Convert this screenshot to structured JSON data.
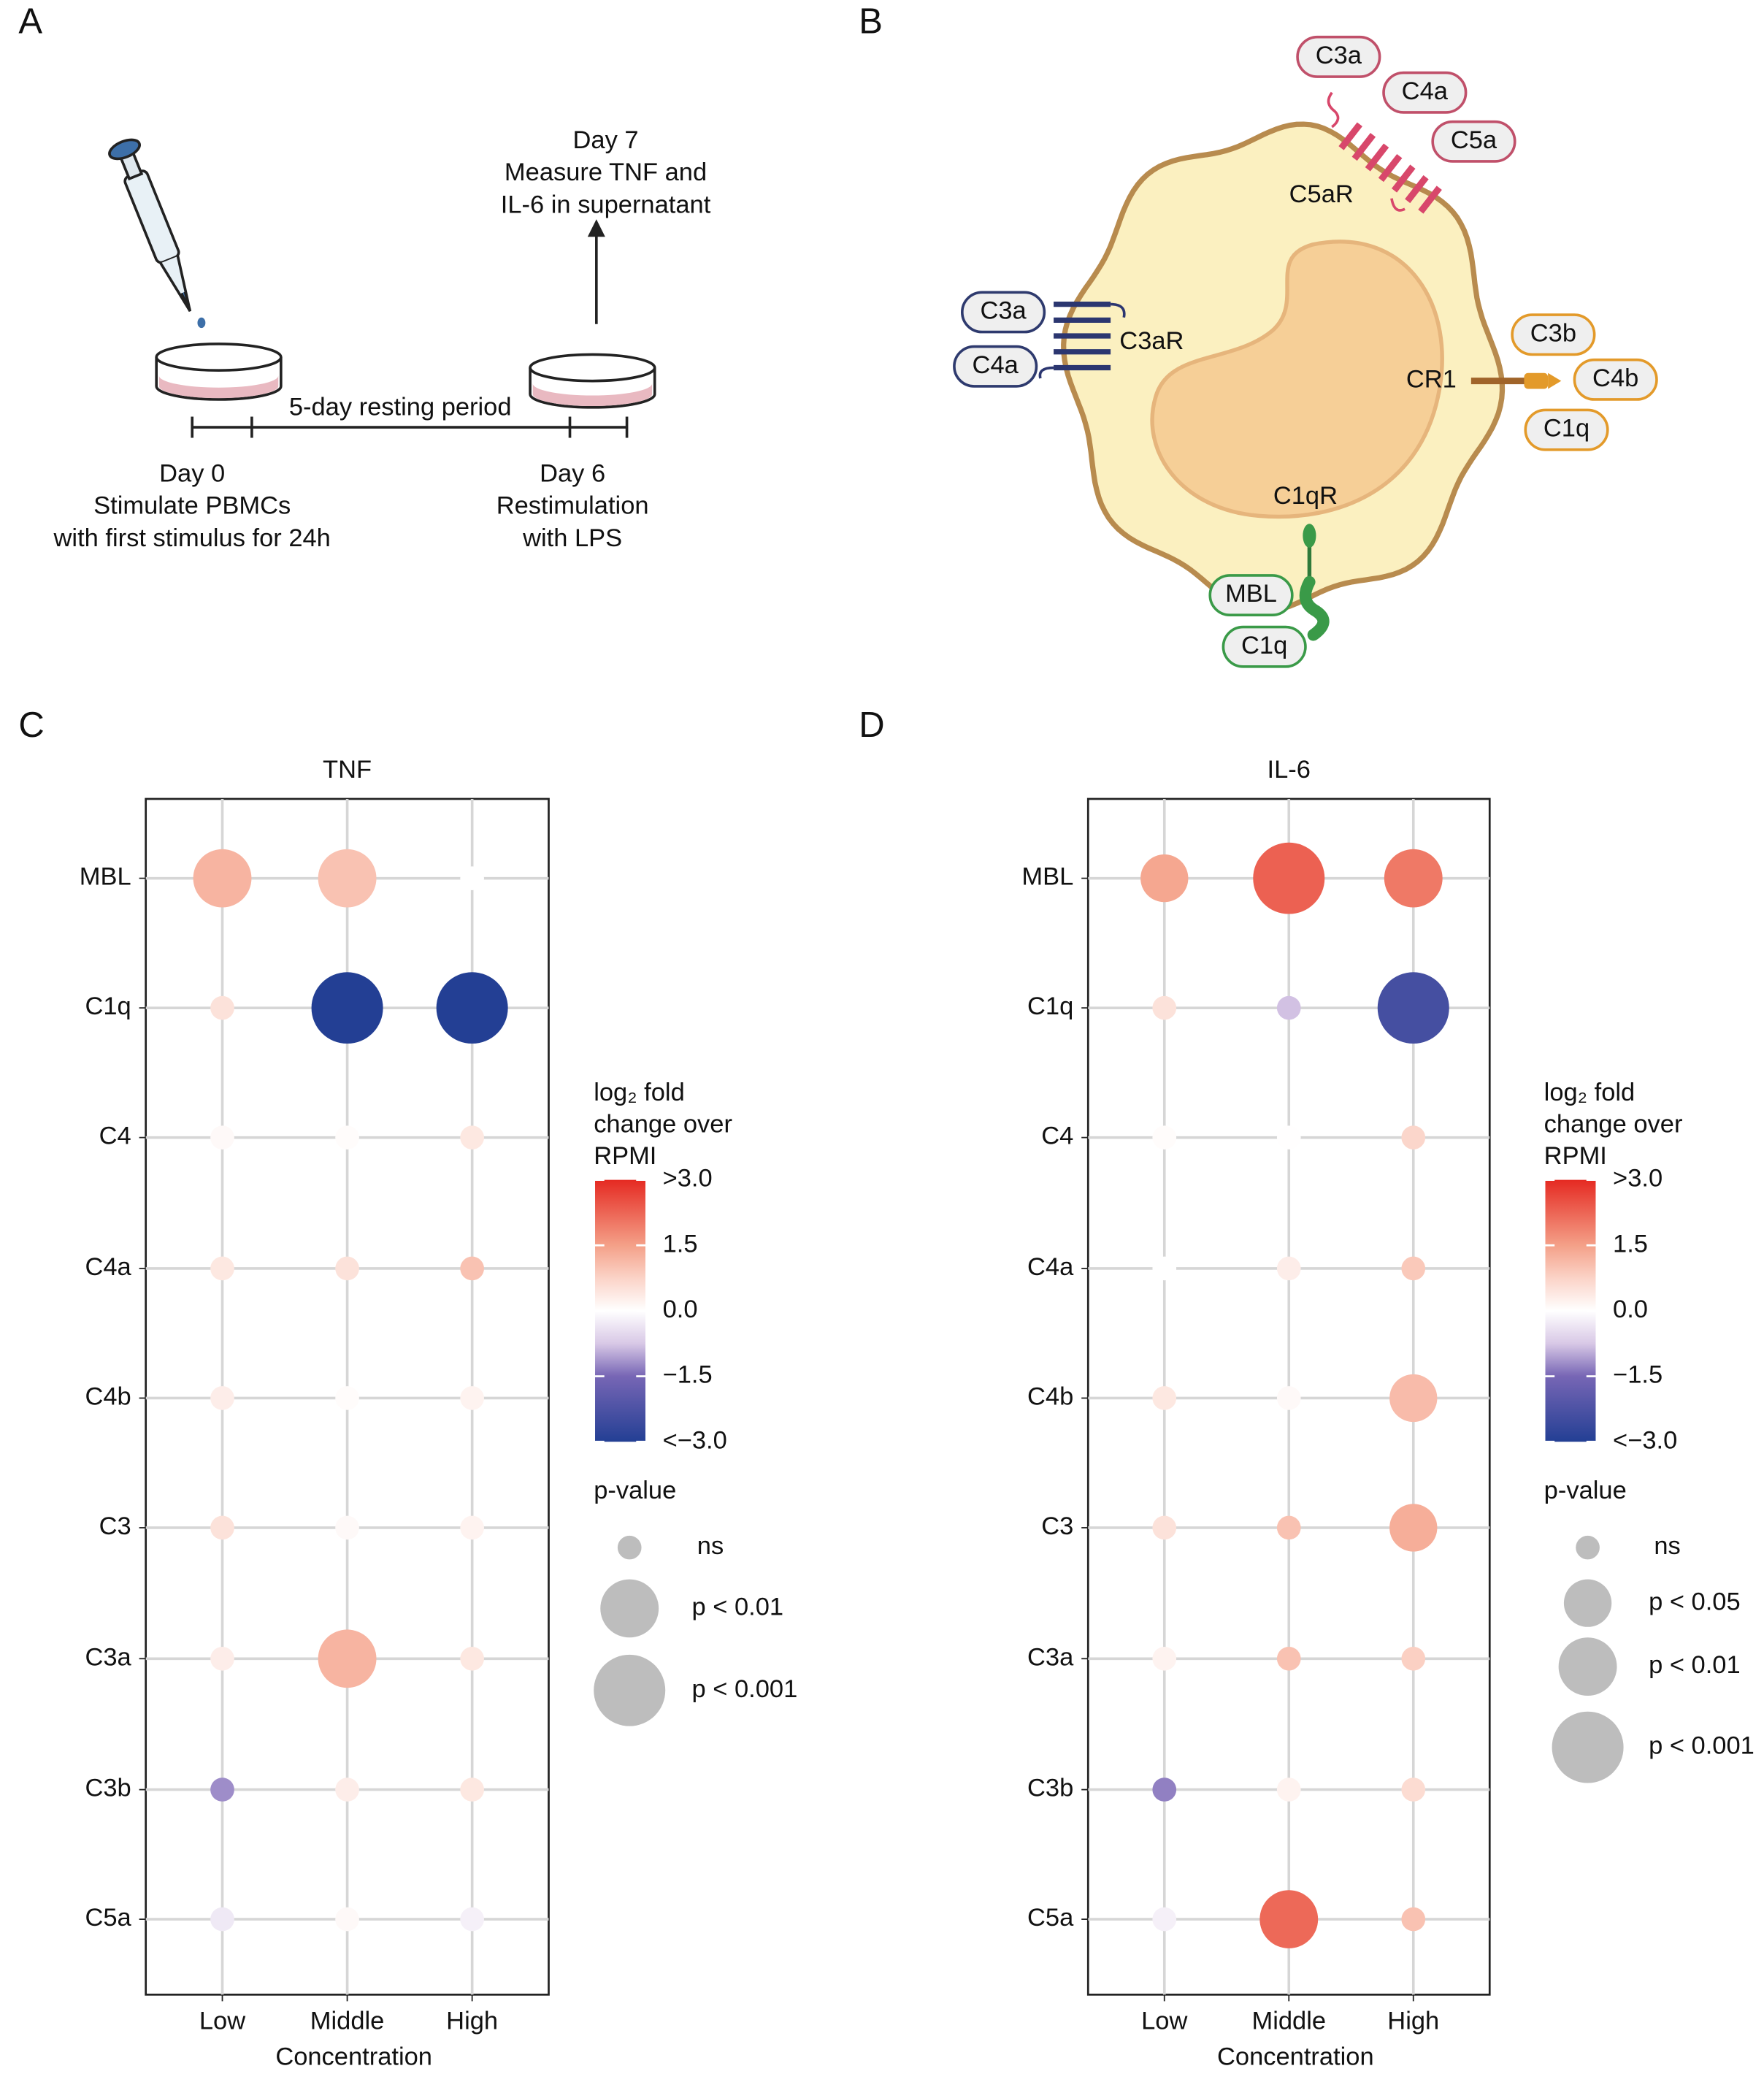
{
  "panel_labels": [
    "A",
    "B",
    "C",
    "D"
  ],
  "panel_a": {
    "day7": [
      "Day 7",
      "Measure TNF and",
      "IL-6 in supernatant"
    ],
    "resting": "5-day resting period",
    "day0": [
      "Day 0",
      "Stimulate PBMCs",
      "with first stimulus for 24h"
    ],
    "day6": [
      "Day 6",
      "Restimulation",
      "with LPS"
    ]
  },
  "panel_b": {
    "ligands": [
      "C3a",
      "C4a",
      "C5a",
      "C3a",
      "C4a",
      "C3b",
      "C4b",
      "C1q",
      "MBL",
      "C1q"
    ],
    "receptors": [
      "C5aR",
      "C3aR",
      "CR1",
      "C1qR"
    ]
  },
  "chart_data": [
    {
      "type": "dot",
      "title": "TNF",
      "x_label": "Concentration",
      "categories": [
        "Low",
        "Middle",
        "High"
      ],
      "y_categories": [
        "MBL",
        "C1q",
        "C4",
        "C4a",
        "C4b",
        "C3",
        "C3a",
        "C3b",
        "C5a"
      ],
      "values": [
        [
          1.2,
          1.0,
          0.0
        ],
        [
          0.5,
          -3.0,
          -3.5
        ],
        [
          0.1,
          0.05,
          0.4
        ],
        [
          0.4,
          0.5,
          1.0
        ],
        [
          0.3,
          0.05,
          0.2
        ],
        [
          0.5,
          0.1,
          0.2
        ],
        [
          0.3,
          1.2,
          0.4
        ],
        [
          -1.2,
          0.3,
          0.4
        ],
        [
          -0.3,
          0.1,
          -0.2
        ]
      ],
      "sizes": [
        [
          "p < 0.01",
          "p < 0.01",
          "ns"
        ],
        [
          "ns",
          "p < 0.001",
          "p < 0.001"
        ],
        [
          "ns",
          "ns",
          "ns"
        ],
        [
          "ns",
          "ns",
          "ns"
        ],
        [
          "ns",
          "ns",
          "ns"
        ],
        [
          "ns",
          "ns",
          "ns"
        ],
        [
          "ns",
          "p < 0.01",
          "ns"
        ],
        [
          "ns",
          "ns",
          "ns"
        ],
        [
          "ns",
          "ns",
          "ns"
        ]
      ],
      "grid": true,
      "color_scale": {
        "title": [
          "log₂ fold",
          "change over",
          "RPMI"
        ],
        "lim": [
          -3,
          3
        ],
        "ticks": [
          {
            "value": 3,
            "label": ">3.0"
          },
          {
            "value": 1.5,
            "label": "1.5"
          },
          {
            "value": 0,
            "label": "0.0"
          },
          {
            "value": -1.5,
            "label": "−1.5"
          },
          {
            "value": -3,
            "label": "<−3.0"
          }
        ]
      },
      "size_legend": {
        "title": "p-value",
        "levels": [
          "ns",
          "p < 0.01",
          "p < 0.001"
        ]
      }
    },
    {
      "type": "dot",
      "title": "IL-6",
      "x_label": "Concentration",
      "categories": [
        "Low",
        "Middle",
        "High"
      ],
      "y_categories": [
        "MBL",
        "C1q",
        "C4",
        "C4a",
        "C4b",
        "C3",
        "C3a",
        "C3b",
        "C5a"
      ],
      "values": [
        [
          1.4,
          2.3,
          2.0
        ],
        [
          0.5,
          -0.8,
          -2.4
        ],
        [
          0.05,
          0.02,
          0.7
        ],
        [
          0.0,
          0.3,
          0.9
        ],
        [
          0.4,
          0.1,
          1.1
        ],
        [
          0.5,
          1.0,
          1.3
        ],
        [
          0.2,
          1.0,
          0.8
        ],
        [
          -1.3,
          0.2,
          0.6
        ],
        [
          -0.2,
          2.2,
          1.0
        ]
      ],
      "sizes": [
        [
          "p < 0.05",
          "p < 0.001",
          "p < 0.01"
        ],
        [
          "ns",
          "ns",
          "p < 0.001"
        ],
        [
          "ns",
          "ns",
          "ns"
        ],
        [
          "ns",
          "ns",
          "ns"
        ],
        [
          "ns",
          "ns",
          "p < 0.05"
        ],
        [
          "ns",
          "ns",
          "p < 0.05"
        ],
        [
          "ns",
          "ns",
          "ns"
        ],
        [
          "ns",
          "ns",
          "ns"
        ],
        [
          "ns",
          "p < 0.01",
          "ns"
        ]
      ],
      "grid": true,
      "color_scale": {
        "title": [
          "log₂ fold",
          "change over",
          "RPMI"
        ],
        "lim": [
          -3,
          3
        ],
        "ticks": [
          {
            "value": 3,
            "label": ">3.0"
          },
          {
            "value": 1.5,
            "label": "1.5"
          },
          {
            "value": 0,
            "label": "0.0"
          },
          {
            "value": -1.5,
            "label": "−1.5"
          },
          {
            "value": -3,
            "label": "<−3.0"
          }
        ]
      },
      "size_legend": {
        "title": "p-value",
        "levels": [
          "ns",
          "p < 0.05",
          "p < 0.01",
          "p < 0.001"
        ]
      }
    }
  ]
}
